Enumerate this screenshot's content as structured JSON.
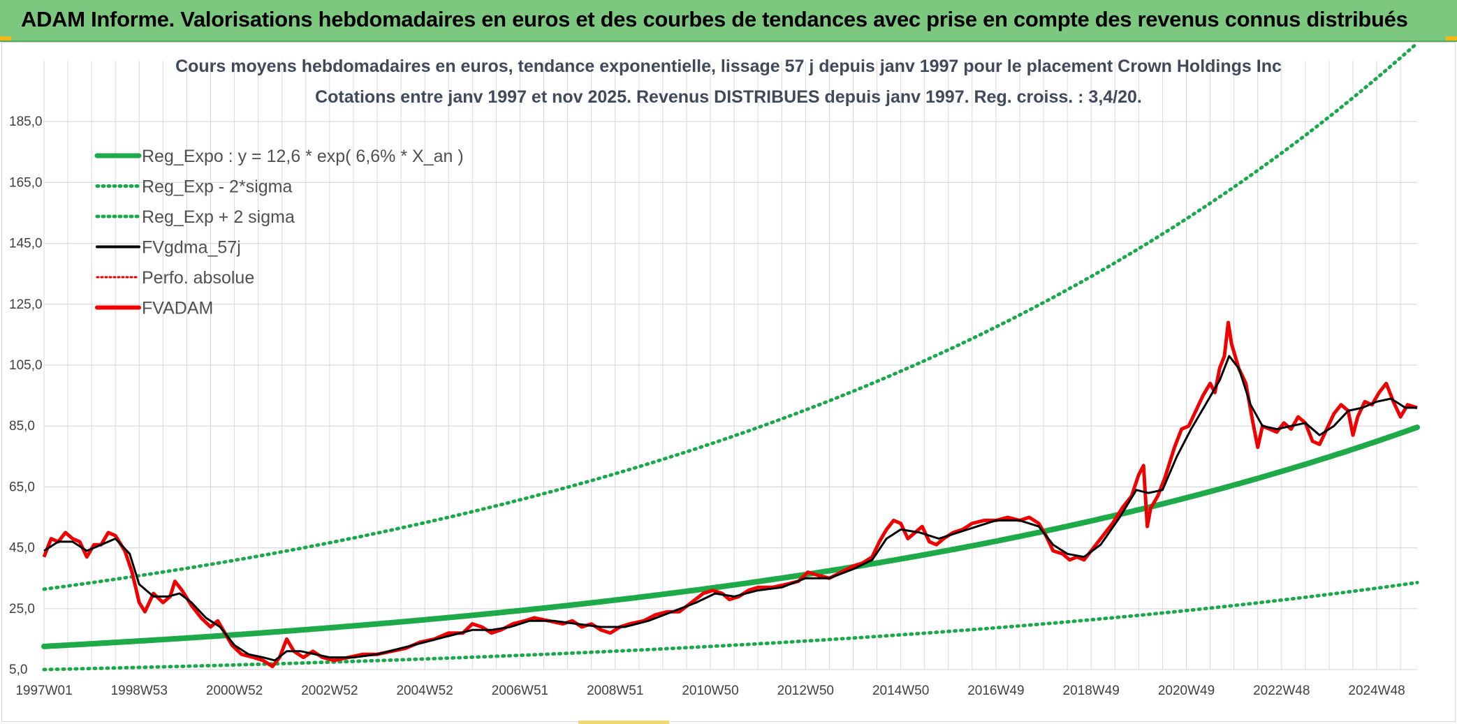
{
  "header": {
    "title": "ADAM Informe. Valorisations hebdomadaires en euros et des courbes de tendances avec prise en compte des revenus connus distribués"
  },
  "colors": {
    "header_bg": "#7dc87f",
    "reg_expo": "#1faa4a",
    "sigma_bands": "#19a84a",
    "fv_gdma": "#000000",
    "perfo_absolue": "#e00000",
    "fvadam": "#f20000",
    "grid": "#d9d9d9"
  },
  "chart_data": {
    "type": "line",
    "title": "Cours moyens hebdomadaires en euros, tendance exponentielle, lissage 57 j depuis janv 1997 pour le placement Crown Holdings Inc",
    "subtitle": "Cotations entre janv 1997 et nov 2025. Revenus DISTRIBUES depuis janv 1997. Reg. croiss. : 3,4/20.",
    "xlabel": "",
    "ylabel": "",
    "x_range_years": [
      1997.0,
      2025.85
    ],
    "ylim": [
      5,
      205
    ],
    "y_ticks": [
      "5,0",
      "25,0",
      "45,0",
      "65,0",
      "85,0",
      "105,0",
      "125,0",
      "145,0",
      "165,0",
      "185,0"
    ],
    "x_ticks": [
      {
        "label": "1997W01",
        "year": 1997.0
      },
      {
        "label": "1998W53",
        "year": 1999.0
      },
      {
        "label": "2000W52",
        "year": 2001.0
      },
      {
        "label": "2002W52",
        "year": 2003.0
      },
      {
        "label": "2004W52",
        "year": 2005.0
      },
      {
        "label": "2006W51",
        "year": 2007.0
      },
      {
        "label": "2008W51",
        "year": 2009.0
      },
      {
        "label": "2010W50",
        "year": 2011.0
      },
      {
        "label": "2012W50",
        "year": 2013.0
      },
      {
        "label": "2014W50",
        "year": 2015.0
      },
      {
        "label": "2016W49",
        "year": 2017.0
      },
      {
        "label": "2018W49",
        "year": 2019.0
      },
      {
        "label": "2020W49",
        "year": 2021.0
      },
      {
        "label": "2022W48",
        "year": 2023.0
      },
      {
        "label": "2024W48",
        "year": 2025.0
      }
    ],
    "legend_position": "top-left",
    "series": [
      {
        "name": "Reg_Expo : y = 12,6 * exp( 6,6% *  X_an )",
        "style": "solid-thick",
        "color": "#1faa4a",
        "formula": {
          "a": 12.6,
          "rate": 0.066,
          "origin_year": 1997.0
        }
      },
      {
        "name": "Reg_Exp - 2*sigma",
        "style": "dotted",
        "color": "#19a84a",
        "formula": {
          "a": 5.0,
          "rate": 0.066,
          "origin_year": 1997.0
        }
      },
      {
        "name": "Reg_Exp + 2 sigma",
        "style": "dotted",
        "color": "#19a84a",
        "formula": {
          "a": 31.4,
          "rate": 0.066,
          "origin_year": 1997.0
        },
        "cap": 200
      },
      {
        "name": "FVgdma_57j",
        "style": "solid",
        "color": "#000000"
      },
      {
        "name": "Perfo. absolue",
        "style": "dotted",
        "color": "#e00000"
      },
      {
        "name": "FVADAM",
        "style": "solid-thick",
        "color": "#f20000"
      }
    ],
    "fvadam_points": [
      [
        1997.0,
        42
      ],
      [
        1997.15,
        48
      ],
      [
        1997.3,
        47
      ],
      [
        1997.45,
        50
      ],
      [
        1997.6,
        48
      ],
      [
        1997.75,
        47
      ],
      [
        1997.9,
        42
      ],
      [
        1998.05,
        46
      ],
      [
        1998.2,
        46
      ],
      [
        1998.35,
        50
      ],
      [
        1998.5,
        49
      ],
      [
        1998.7,
        44
      ],
      [
        1998.85,
        37
      ],
      [
        1999.0,
        27
      ],
      [
        1999.12,
        24
      ],
      [
        1999.3,
        30
      ],
      [
        1999.5,
        27
      ],
      [
        1999.65,
        29
      ],
      [
        1999.75,
        34
      ],
      [
        1999.9,
        31
      ],
      [
        2000.1,
        26
      ],
      [
        2000.3,
        22
      ],
      [
        2000.5,
        19
      ],
      [
        2000.65,
        21
      ],
      [
        2000.8,
        17
      ],
      [
        2000.95,
        13
      ],
      [
        2001.15,
        10
      ],
      [
        2001.4,
        9
      ],
      [
        2001.6,
        8
      ],
      [
        2001.8,
        6
      ],
      [
        2001.95,
        9
      ],
      [
        2002.1,
        15
      ],
      [
        2002.25,
        11
      ],
      [
        2002.45,
        9
      ],
      [
        2002.65,
        11
      ],
      [
        2002.85,
        9
      ],
      [
        2003.1,
        8
      ],
      [
        2003.4,
        9
      ],
      [
        2003.7,
        10
      ],
      [
        2004.0,
        10
      ],
      [
        2004.3,
        11
      ],
      [
        2004.6,
        12
      ],
      [
        2004.9,
        14
      ],
      [
        2005.2,
        15
      ],
      [
        2005.5,
        17
      ],
      [
        2005.8,
        17
      ],
      [
        2006.0,
        20
      ],
      [
        2006.2,
        19
      ],
      [
        2006.4,
        17
      ],
      [
        2006.6,
        18
      ],
      [
        2006.85,
        20
      ],
      [
        2007.1,
        21
      ],
      [
        2007.3,
        22
      ],
      [
        2007.6,
        21
      ],
      [
        2007.9,
        20
      ],
      [
        2008.1,
        21
      ],
      [
        2008.3,
        19
      ],
      [
        2008.5,
        20
      ],
      [
        2008.7,
        18
      ],
      [
        2008.9,
        17
      ],
      [
        2009.1,
        19
      ],
      [
        2009.3,
        20
      ],
      [
        2009.6,
        21
      ],
      [
        2009.85,
        23
      ],
      [
        2010.1,
        24
      ],
      [
        2010.35,
        24
      ],
      [
        2010.6,
        27
      ],
      [
        2010.85,
        30
      ],
      [
        2011.05,
        31
      ],
      [
        2011.25,
        30
      ],
      [
        2011.4,
        28
      ],
      [
        2011.6,
        29
      ],
      [
        2011.8,
        31
      ],
      [
        2012.0,
        32
      ],
      [
        2012.3,
        32
      ],
      [
        2012.6,
        33
      ],
      [
        2012.85,
        34
      ],
      [
        2013.05,
        37
      ],
      [
        2013.25,
        36
      ],
      [
        2013.5,
        35
      ],
      [
        2013.75,
        37
      ],
      [
        2014.0,
        39
      ],
      [
        2014.2,
        40
      ],
      [
        2014.4,
        42
      ],
      [
        2014.55,
        47
      ],
      [
        2014.7,
        51
      ],
      [
        2014.85,
        54
      ],
      [
        2015.0,
        53
      ],
      [
        2015.15,
        48
      ],
      [
        2015.3,
        50
      ],
      [
        2015.45,
        52
      ],
      [
        2015.6,
        47
      ],
      [
        2015.75,
        46
      ],
      [
        2015.9,
        48
      ],
      [
        2016.1,
        50
      ],
      [
        2016.3,
        51
      ],
      [
        2016.5,
        53
      ],
      [
        2016.75,
        54
      ],
      [
        2017.0,
        54
      ],
      [
        2017.25,
        55
      ],
      [
        2017.5,
        54
      ],
      [
        2017.7,
        55
      ],
      [
        2017.9,
        53
      ],
      [
        2018.05,
        49
      ],
      [
        2018.2,
        44
      ],
      [
        2018.4,
        43
      ],
      [
        2018.55,
        41
      ],
      [
        2018.7,
        42
      ],
      [
        2018.85,
        41
      ],
      [
        2019.0,
        44
      ],
      [
        2019.2,
        48
      ],
      [
        2019.45,
        53
      ],
      [
        2019.65,
        58
      ],
      [
        2019.85,
        62
      ],
      [
        2020.0,
        69
      ],
      [
        2020.1,
        72
      ],
      [
        2020.18,
        52
      ],
      [
        2020.25,
        58
      ],
      [
        2020.4,
        62
      ],
      [
        2020.55,
        68
      ],
      [
        2020.75,
        78
      ],
      [
        2020.9,
        84
      ],
      [
        2021.05,
        85
      ],
      [
        2021.2,
        90
      ],
      [
        2021.35,
        95
      ],
      [
        2021.5,
        99
      ],
      [
        2021.6,
        96
      ],
      [
        2021.7,
        104
      ],
      [
        2021.8,
        108
      ],
      [
        2021.88,
        119
      ],
      [
        2021.95,
        112
      ],
      [
        2022.1,
        104
      ],
      [
        2022.25,
        99
      ],
      [
        2022.4,
        86
      ],
      [
        2022.5,
        78
      ],
      [
        2022.6,
        85
      ],
      [
        2022.75,
        84
      ],
      [
        2022.9,
        83
      ],
      [
        2023.05,
        86
      ],
      [
        2023.2,
        84
      ],
      [
        2023.35,
        88
      ],
      [
        2023.5,
        86
      ],
      [
        2023.65,
        80
      ],
      [
        2023.8,
        79
      ],
      [
        2023.95,
        84
      ],
      [
        2024.1,
        89
      ],
      [
        2024.25,
        92
      ],
      [
        2024.4,
        90
      ],
      [
        2024.5,
        82
      ],
      [
        2024.6,
        88
      ],
      [
        2024.75,
        93
      ],
      [
        2024.9,
        92
      ],
      [
        2025.05,
        96
      ],
      [
        2025.2,
        99
      ],
      [
        2025.35,
        93
      ],
      [
        2025.5,
        88
      ],
      [
        2025.65,
        92
      ],
      [
        2025.85,
        91
      ]
    ],
    "fvgdma_points": [
      [
        1997.0,
        44
      ],
      [
        1997.3,
        47
      ],
      [
        1997.6,
        47
      ],
      [
        1997.9,
        44
      ],
      [
        1998.2,
        46
      ],
      [
        1998.5,
        48
      ],
      [
        1998.8,
        43
      ],
      [
        1999.0,
        33
      ],
      [
        1999.3,
        29
      ],
      [
        1999.6,
        29
      ],
      [
        1999.85,
        30
      ],
      [
        2000.1,
        27
      ],
      [
        2000.4,
        22
      ],
      [
        2000.7,
        19
      ],
      [
        2001.0,
        13
      ],
      [
        2001.3,
        10
      ],
      [
        2001.6,
        9
      ],
      [
        2001.85,
        8
      ],
      [
        2002.1,
        11
      ],
      [
        2002.4,
        11
      ],
      [
        2002.7,
        10
      ],
      [
        2003.0,
        9
      ],
      [
        2003.5,
        9
      ],
      [
        2004.0,
        10
      ],
      [
        2004.5,
        12
      ],
      [
        2005.0,
        14
      ],
      [
        2005.5,
        16
      ],
      [
        2006.0,
        18
      ],
      [
        2006.4,
        18
      ],
      [
        2006.8,
        19
      ],
      [
        2007.2,
        21
      ],
      [
        2007.7,
        21
      ],
      [
        2008.2,
        20
      ],
      [
        2008.7,
        19
      ],
      [
        2009.2,
        19
      ],
      [
        2009.7,
        21
      ],
      [
        2010.2,
        24
      ],
      [
        2010.7,
        27
      ],
      [
        2011.1,
        30
      ],
      [
        2011.5,
        29
      ],
      [
        2012.0,
        31
      ],
      [
        2012.5,
        32
      ],
      [
        2013.0,
        35
      ],
      [
        2013.5,
        35
      ],
      [
        2014.0,
        38
      ],
      [
        2014.4,
        41
      ],
      [
        2014.7,
        48
      ],
      [
        2015.0,
        51
      ],
      [
        2015.4,
        50
      ],
      [
        2015.8,
        48
      ],
      [
        2016.2,
        50
      ],
      [
        2016.6,
        52
      ],
      [
        2017.0,
        54
      ],
      [
        2017.5,
        54
      ],
      [
        2017.9,
        52
      ],
      [
        2018.2,
        46
      ],
      [
        2018.5,
        43
      ],
      [
        2018.85,
        42
      ],
      [
        2019.2,
        46
      ],
      [
        2019.6,
        55
      ],
      [
        2019.95,
        64
      ],
      [
        2020.2,
        63
      ],
      [
        2020.5,
        64
      ],
      [
        2020.8,
        75
      ],
      [
        2021.1,
        84
      ],
      [
        2021.4,
        92
      ],
      [
        2021.7,
        100
      ],
      [
        2021.9,
        108
      ],
      [
        2022.1,
        104
      ],
      [
        2022.35,
        92
      ],
      [
        2022.6,
        85
      ],
      [
        2022.9,
        84
      ],
      [
        2023.2,
        85
      ],
      [
        2023.5,
        86
      ],
      [
        2023.8,
        82
      ],
      [
        2024.1,
        85
      ],
      [
        2024.4,
        90
      ],
      [
        2024.7,
        91
      ],
      [
        2025.0,
        93
      ],
      [
        2025.3,
        94
      ],
      [
        2025.6,
        91
      ],
      [
        2025.85,
        91
      ]
    ]
  }
}
